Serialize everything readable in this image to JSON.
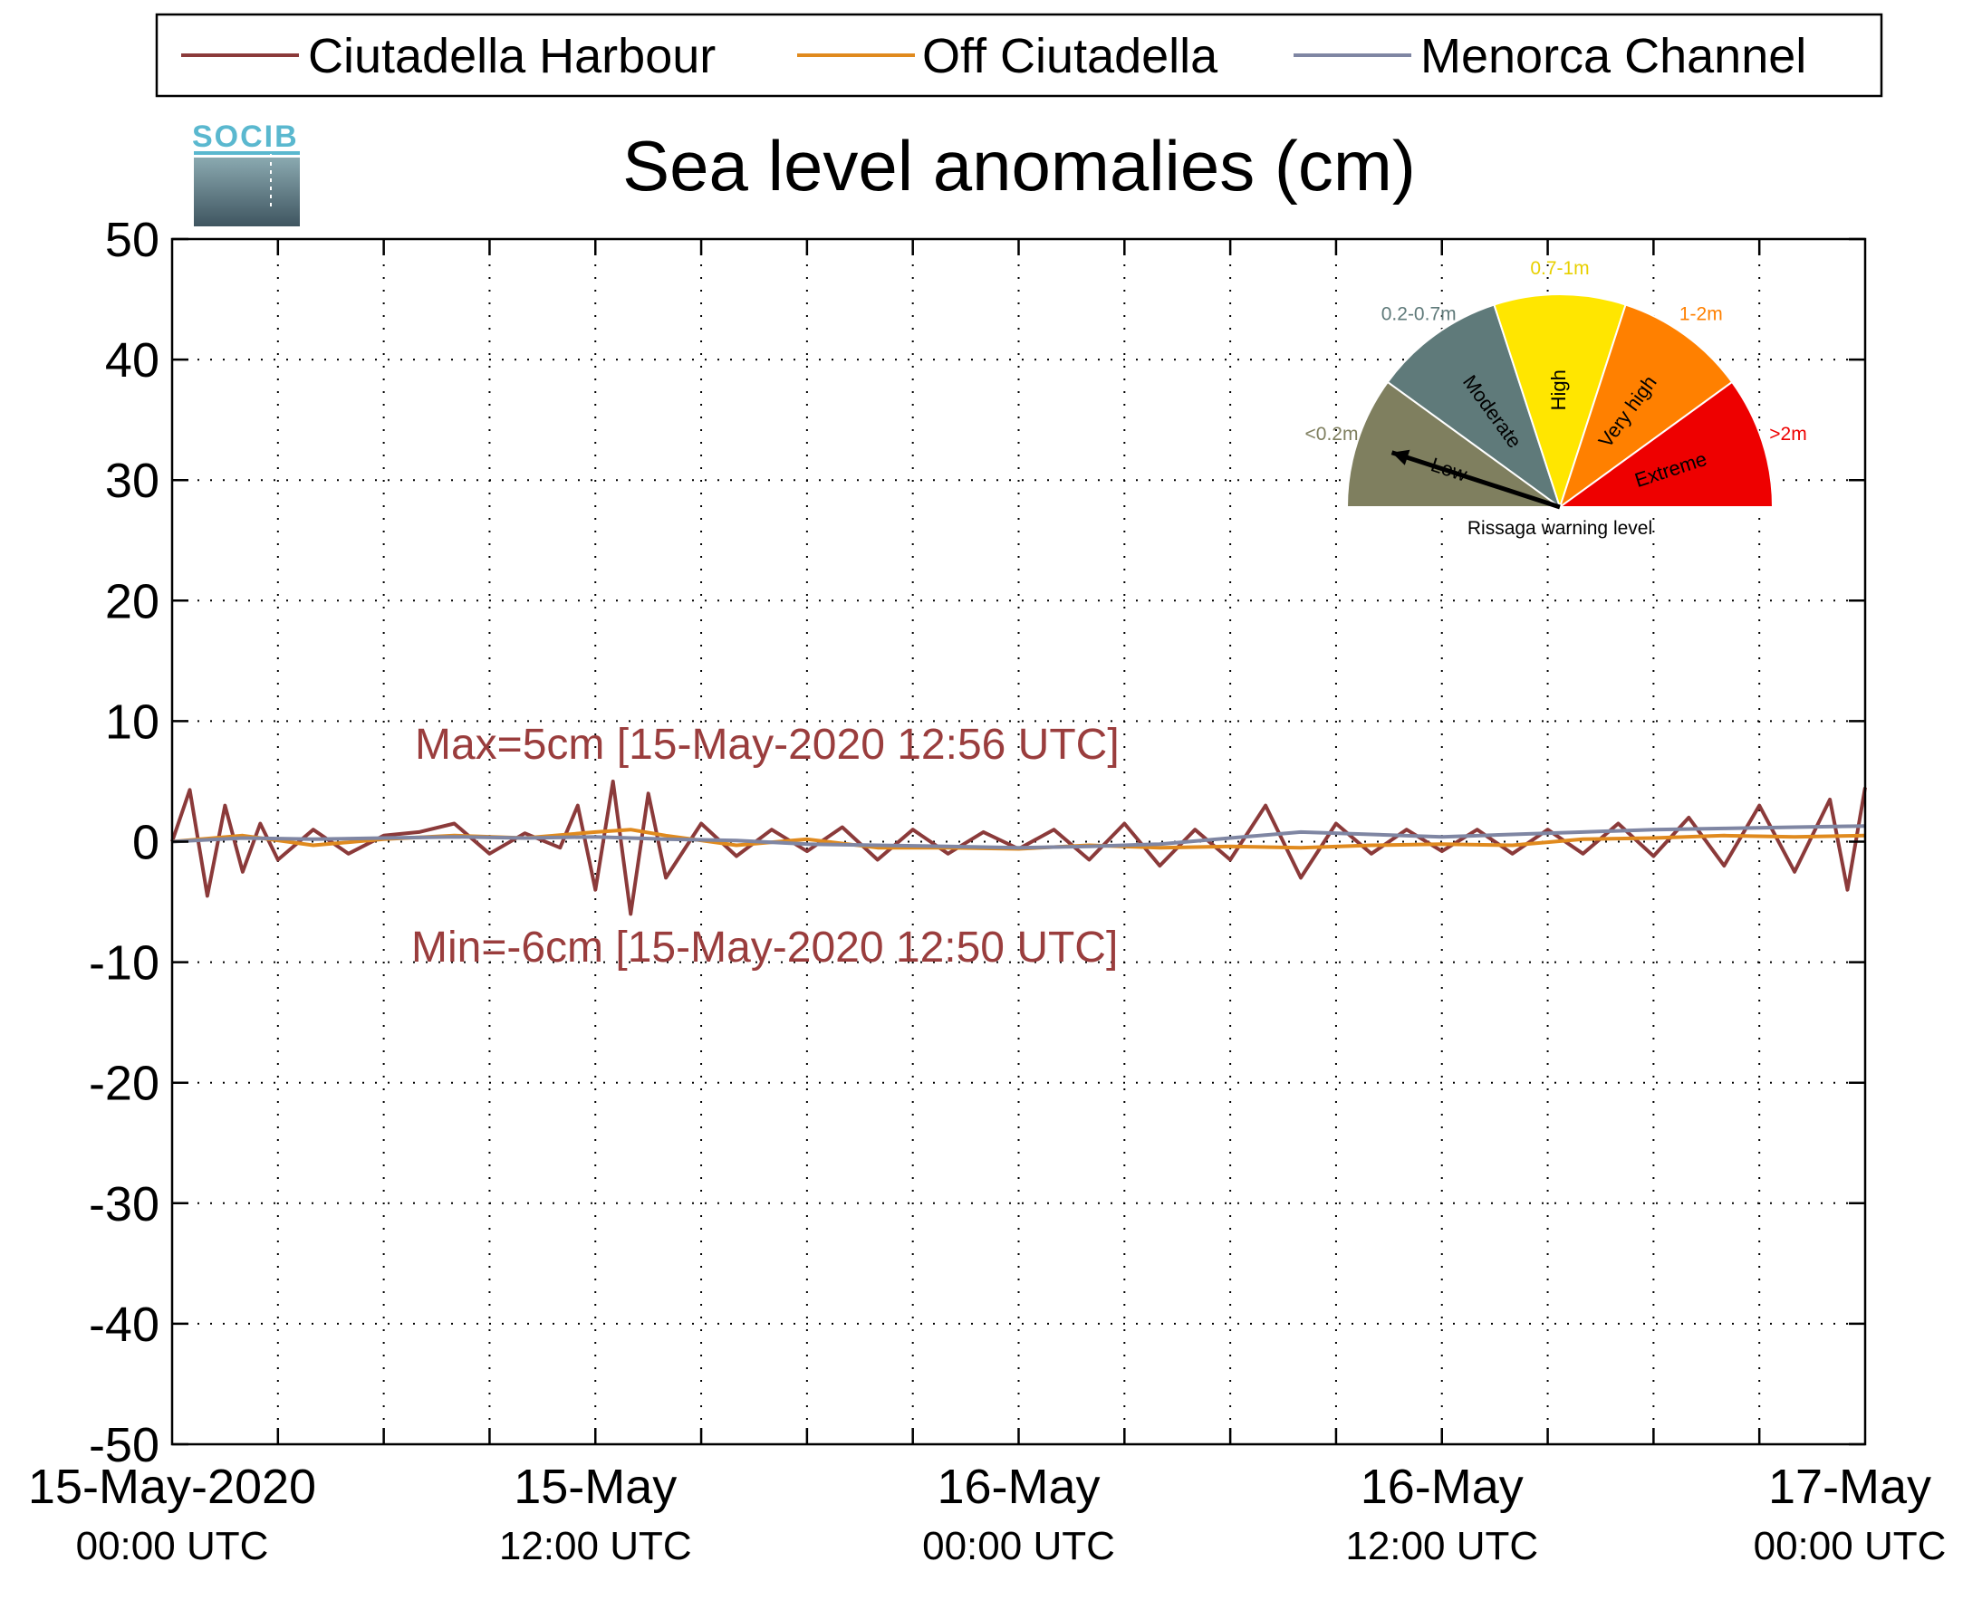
{
  "legend": {
    "items": [
      {
        "label": "Ciutadella Harbour",
        "color": "#8b3a3a"
      },
      {
        "label": "Off Ciutadella",
        "color": "#e08a1e"
      },
      {
        "label": "Menorca Channel",
        "color": "#7f86a3"
      }
    ]
  },
  "logo": {
    "text": "SOCIB"
  },
  "chart_data": {
    "type": "line",
    "title": "Sea level anomalies (cm)",
    "xlabel": "",
    "ylabel": "",
    "ylim": [
      -50,
      50
    ],
    "yticks": [
      50,
      40,
      30,
      20,
      10,
      0,
      -10,
      -20,
      -30,
      -40,
      -50
    ],
    "xlim_hours": [
      0,
      48
    ],
    "xticks": [
      {
        "label": "15-May-2020",
        "sub": "00:00 UTC"
      },
      {
        "label": "15-May",
        "sub": "12:00 UTC"
      },
      {
        "label": "16-May",
        "sub": "00:00 UTC"
      },
      {
        "label": "16-May",
        "sub": "12:00 UTC"
      },
      {
        "label": "17-May",
        "sub": "00:00 UTC"
      }
    ],
    "grid": true,
    "legend_position": "top",
    "annotations": {
      "max": "Max=5cm [15-May-2020 12:56 UTC]",
      "min": "Min=-6cm [15-May-2020 12:50 UTC]"
    },
    "series": [
      {
        "name": "Ciutadella Harbour",
        "color": "#8b3a3a",
        "x": [
          0,
          0.5,
          1,
          1.5,
          2,
          2.5,
          3,
          4,
          5,
          6,
          7,
          8,
          9,
          10,
          11,
          11.5,
          12,
          12.5,
          13,
          13.5,
          14,
          15,
          16,
          17,
          18,
          19,
          20,
          21,
          22,
          23,
          24,
          25,
          26,
          27,
          28,
          29,
          30,
          31,
          32,
          33,
          34,
          35,
          36,
          37,
          38,
          39,
          40,
          41,
          42,
          43,
          44,
          45,
          46,
          47,
          47.5,
          48
        ],
        "y": [
          0,
          4.3,
          -4.5,
          3,
          -2.5,
          1.5,
          -1.5,
          1,
          -1,
          0.5,
          0.8,
          1.5,
          -1,
          0.7,
          -0.5,
          3,
          -4,
          5,
          -6,
          4,
          -3,
          1.5,
          -1.2,
          1,
          -0.8,
          1.2,
          -1.5,
          1,
          -1,
          0.8,
          -0.6,
          1,
          -1.5,
          1.5,
          -2,
          1,
          -1.5,
          3,
          -3,
          1.5,
          -1,
          1,
          -0.8,
          1,
          -1,
          1,
          -1,
          1.5,
          -1.2,
          2,
          -2,
          3,
          -2.5,
          3.5,
          -4,
          4.5
        ]
      },
      {
        "name": "Off Ciutadella",
        "color": "#e08a1e",
        "x": [
          0,
          2,
          4,
          6,
          8,
          10,
          12,
          13,
          14,
          16,
          18,
          20,
          22,
          24,
          26,
          28,
          30,
          32,
          34,
          36,
          38,
          40,
          42,
          44,
          46,
          48
        ],
        "y": [
          0,
          0.5,
          -0.3,
          0.2,
          0.5,
          0.3,
          0.8,
          1,
          0.5,
          -0.3,
          0.2,
          -0.5,
          -0.5,
          -0.6,
          -0.3,
          -0.5,
          -0.4,
          -0.5,
          -0.3,
          -0.2,
          -0.3,
          0.2,
          0.3,
          0.5,
          0.4,
          0.5
        ]
      },
      {
        "name": "Menorca Channel",
        "color": "#7f86a3",
        "x": [
          0,
          2,
          4,
          6,
          8,
          10,
          12,
          14,
          16,
          18,
          20,
          22,
          24,
          26,
          28,
          30,
          32,
          34,
          36,
          38,
          40,
          42,
          44,
          46,
          48
        ],
        "y": [
          0,
          0.3,
          0.2,
          0.3,
          0.4,
          0.3,
          0.4,
          0.2,
          0.1,
          -0.2,
          -0.3,
          -0.4,
          -0.5,
          -0.4,
          -0.2,
          0.3,
          0.8,
          0.6,
          0.4,
          0.6,
          0.8,
          1.0,
          1.1,
          1.2,
          1.3
        ]
      }
    ]
  },
  "gauge": {
    "title": "Rissaga warning level",
    "needle_level": "Low",
    "segments": [
      {
        "name": "Low",
        "range": "<0.2m",
        "color": "#7f7f5f",
        "range_color": "#7f7f5f"
      },
      {
        "name": "Moderate",
        "range": "0.2-0.7m",
        "color": "#5f7a7a",
        "range_color": "#5f7a7a"
      },
      {
        "name": "High",
        "range": "0.7-1m",
        "color": "#ffe600",
        "range_color": "#e8d000"
      },
      {
        "name": "Very high",
        "range": "1-2m",
        "color": "#ff8000",
        "range_color": "#ff8000"
      },
      {
        "name": "Extreme",
        "range": ">2m",
        "color": "#ee0000",
        "range_color": "#ee0000"
      }
    ]
  }
}
